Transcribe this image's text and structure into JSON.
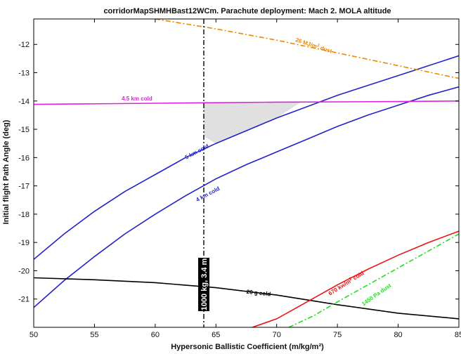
{
  "chart_data": {
    "type": "line",
    "title": "corridorMapSHMHBast12WCm. Parachute deployment: Mach 2. MOLA altitude",
    "xlabel": "Hypersonic Ballistic Coefficient (m/kg/m²)",
    "ylabel": "Initial flight Path Angle (deg)",
    "xlim": [
      50,
      85
    ],
    "ylim": [
      -22,
      -11.1
    ],
    "xticks": [
      50,
      55,
      60,
      65,
      70,
      75,
      80,
      85
    ],
    "yticks": [
      -21,
      -20,
      -19,
      -18,
      -17,
      -16,
      -15,
      -14,
      -13,
      -12
    ],
    "grid": false,
    "colors": {
      "blue": "#2222cc",
      "magenta": "#dd22dd",
      "orange": "#ee8800",
      "black": "#000000",
      "red": "#ee1111",
      "green": "#22dd22",
      "shade": "#e0e0e0"
    },
    "series": [
      {
        "name": "5 km cold",
        "color": "#2222cc",
        "style": "solid",
        "x": [
          50,
          52.5,
          55,
          57.5,
          60,
          62.5,
          65,
          67.5,
          70,
          72.5,
          75,
          77.5,
          80,
          82.5,
          85
        ],
        "y": [
          -19.6,
          -18.7,
          -17.9,
          -17.2,
          -16.6,
          -16.0,
          -15.5,
          -15.05,
          -14.6,
          -14.2,
          -13.8,
          -13.45,
          -13.1,
          -12.75,
          -12.4
        ]
      },
      {
        "name": "4 km cold",
        "color": "#2222cc",
        "style": "solid",
        "x": [
          50,
          52.5,
          55,
          57.5,
          60,
          62.5,
          65,
          67.5,
          70,
          72.5,
          75,
          77.5,
          80,
          82.5,
          85
        ],
        "y": [
          -21.3,
          -20.35,
          -19.5,
          -18.7,
          -18.0,
          -17.35,
          -16.75,
          -16.25,
          -15.8,
          -15.35,
          -14.9,
          -14.5,
          -14.15,
          -13.8,
          -13.5
        ]
      },
      {
        "name": "4.5 km cold",
        "color": "#dd22dd",
        "style": "solid",
        "x": [
          50,
          60,
          70,
          80,
          85
        ],
        "y": [
          -14.12,
          -14.08,
          -14.04,
          -14.02,
          -14.0
        ]
      },
      {
        "name": "20 g cold",
        "color": "#000000",
        "style": "solid",
        "x": [
          50,
          55,
          60,
          65,
          70,
          75,
          80,
          85
        ],
        "y": [
          -20.25,
          -20.32,
          -20.42,
          -20.6,
          -20.86,
          -21.2,
          -21.5,
          -21.7
        ]
      },
      {
        "name": "26 MJ/m² dust",
        "color": "#ee8800",
        "style": "dashdot",
        "x": [
          60,
          65,
          70,
          75,
          80,
          85
        ],
        "y": [
          -11.1,
          -11.45,
          -11.85,
          -12.3,
          -12.75,
          -13.2
        ]
      },
      {
        "name": "670 kw/m² cold",
        "color": "#ee1111",
        "style": "solid",
        "x": [
          68,
          70,
          72.5,
          75,
          77.5,
          80,
          82.5,
          85
        ],
        "y": [
          -22.0,
          -21.7,
          -21.1,
          -20.5,
          -19.95,
          -19.45,
          -19.0,
          -18.6
        ]
      },
      {
        "name": "1450 Pa dust",
        "color": "#22dd22",
        "style": "dashdot",
        "x": [
          71,
          73,
          75,
          77.5,
          80,
          82.5,
          85
        ],
        "y": [
          -22.0,
          -21.6,
          -21.1,
          -20.5,
          -19.9,
          -19.3,
          -18.7
        ]
      }
    ],
    "shaded_region": [
      [
        64,
        -15.25
      ],
      [
        64,
        -14.07
      ],
      [
        72,
        -14.04
      ],
      [
        70,
        -14.6
      ],
      [
        67.5,
        -15.05
      ],
      [
        65,
        -15.5
      ]
    ],
    "vertical_line": {
      "x": 64,
      "label": "1000 kg, 3.4 m",
      "color": "#000000",
      "style": "dashdot"
    },
    "annotations": [
      {
        "text": "26 MJ/m",
        "sup": "2",
        "suffix": " dust",
        "x": 73,
        "y": -12.1,
        "rotate": 18,
        "color": "#ee8800"
      },
      {
        "text": "4.5 km cold",
        "x": 58.5,
        "y": -13.98,
        "rotate": 0,
        "color": "#dd22dd"
      },
      {
        "text": "5 km cold",
        "x": 63.5,
        "y": -15.85,
        "rotate": -28,
        "color": "#2222cc"
      },
      {
        "text": "4 km cold",
        "x": 64.4,
        "y": -17.35,
        "rotate": -28,
        "color": "#2222cc"
      },
      {
        "text": "20 g cold",
        "x": 68.5,
        "y": -20.85,
        "rotate": 6,
        "color": "#000000"
      },
      {
        "text": "670 kw/m",
        "sup": "2",
        "suffix": " cold",
        "x": 75.8,
        "y": -20.5,
        "rotate": -32,
        "color": "#ee1111"
      },
      {
        "text": "1450 Pa dust",
        "x": 78.3,
        "y": -20.9,
        "rotate": -35,
        "color": "#22dd22"
      }
    ]
  }
}
